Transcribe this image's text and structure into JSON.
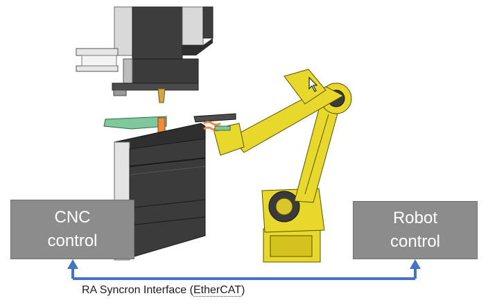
{
  "diagram": {
    "cnc_box": {
      "line1": "CNC",
      "line2": "control"
    },
    "robot_box": {
      "line1": "Robot",
      "line2": "control"
    },
    "interface_label": {
      "prefix": "RA Syncron Interface (",
      "acronym": "EtherCAT",
      "suffix": ")"
    },
    "colors": {
      "box_fill": "#8c8c8c",
      "arrow": "#4472c4",
      "robot": "#e8d82c",
      "press_dark": "#3a3a3a",
      "tooling_green": "#7ec89b",
      "gripper_orange": "#f08a3c"
    },
    "icons": {
      "cursor": "mouse-pointer-icon"
    }
  }
}
